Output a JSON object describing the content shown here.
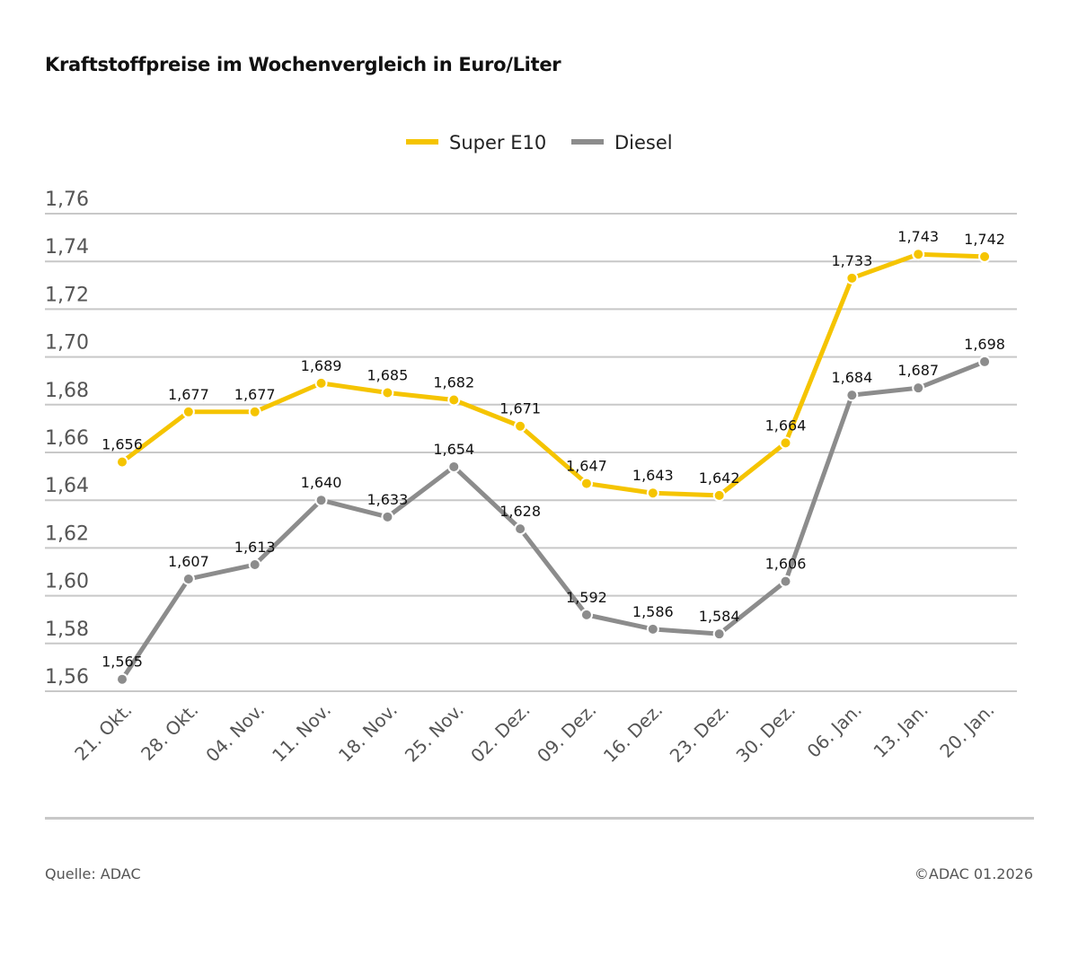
{
  "title": "Kraftstoffpreise im Wochenvergleich in Euro/Liter",
  "source": "Quelle: ADAC",
  "copyright": "©ADAC 01.2026",
  "chart_data": {
    "type": "line",
    "title": "Kraftstoffpreise im Wochenvergleich in Euro/Liter",
    "xlabel": "",
    "ylabel": "",
    "categories": [
      "21. Okt.",
      "28. Okt.",
      "04. Nov.",
      "11. Nov.",
      "18. Nov.",
      "25. Nov.",
      "02. Dez.",
      "09. Dez.",
      "16. Dez.",
      "23. Dez.",
      "30. Dez.",
      "06. Jan.",
      "13. Jan.",
      "20. Jan."
    ],
    "ylim": [
      1.56,
      1.76
    ],
    "yticks": [
      "1,56",
      "1,58",
      "1,60",
      "1,62",
      "1,64",
      "1,66",
      "1,68",
      "1,70",
      "1,72",
      "1,74",
      "1,76"
    ],
    "grid": true,
    "legend": "top-center",
    "series": [
      {
        "name": "Super E10",
        "color": "#f5c400",
        "values": [
          1.656,
          1.677,
          1.677,
          1.689,
          1.685,
          1.682,
          1.671,
          1.647,
          1.643,
          1.642,
          1.664,
          1.733,
          1.743,
          1.742
        ],
        "labels": [
          "1,656",
          "1,677",
          "1,677",
          "1,689",
          "1,685",
          "1,682",
          "1,671",
          "1,647",
          "1,643",
          "1,642",
          "1,664",
          "1,733",
          "1,743",
          "1,742"
        ]
      },
      {
        "name": "Diesel",
        "color": "#8c8c8c",
        "values": [
          1.565,
          1.607,
          1.613,
          1.64,
          1.633,
          1.654,
          1.628,
          1.592,
          1.586,
          1.584,
          1.606,
          1.684,
          1.687,
          1.698
        ],
        "labels": [
          "1,565",
          "1,607",
          "1,613",
          "1,640",
          "1,633",
          "1,654",
          "1,628",
          "1,592",
          "1,586",
          "1,584",
          "1,606",
          "1,684",
          "1,687",
          "1,698"
        ]
      }
    ]
  }
}
